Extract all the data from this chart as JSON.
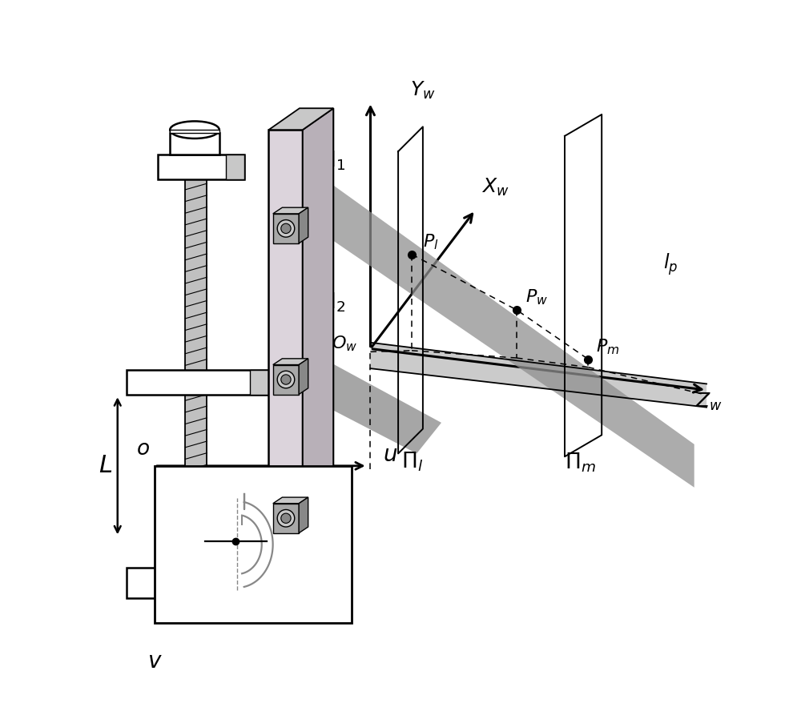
{
  "bg_color": "#ffffff",
  "fig_width": 10.0,
  "fig_height": 8.83,
  "dpi": 100,
  "lgray": "#c8c8c8",
  "mgray": "#a8a8a8",
  "dgray": "#888888",
  "panel_fc": "#dcd4dc",
  "panel_side": "#b8b0b8",
  "rod_gray": "#c0c0c0",
  "cone_gray": "#909090",
  "horiz_gray": "#b0b0b0",
  "tongue_gray": "#888888"
}
